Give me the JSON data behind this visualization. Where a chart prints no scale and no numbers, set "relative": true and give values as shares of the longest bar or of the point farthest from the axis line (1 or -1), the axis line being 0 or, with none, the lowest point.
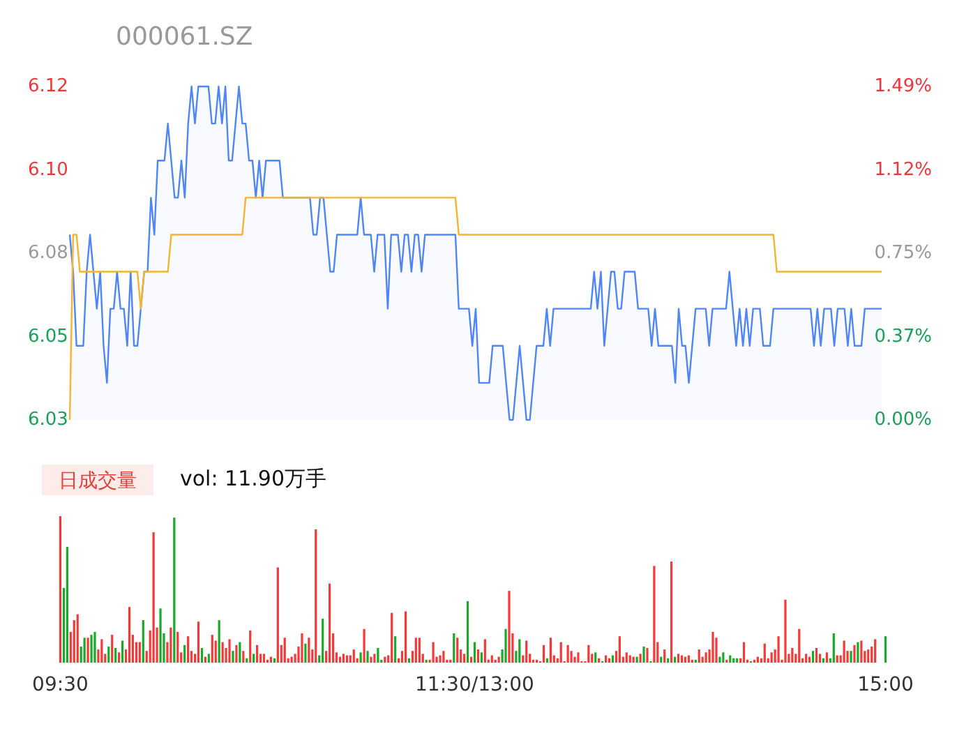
{
  "chart_data": [
    {
      "type": "line",
      "title": "000061.SZ",
      "ylim": [
        6.03,
        6.12
      ],
      "yticks": [
        6.03,
        {
          "value": 6.0525,
          "label": "6.05"
        },
        {
          "value": 6.075,
          "label": "6.08"
        },
        {
          "value": 6.0975,
          "label": "6.10"
        },
        6.12
      ],
      "y2lim": [
        0,
        1.49
      ],
      "y2ticks": [
        {
          "value": 0,
          "label": "0.00%"
        },
        {
          "value": 0.3725,
          "label": "0.37%"
        },
        {
          "value": 0.745,
          "label": "0.75%"
        },
        {
          "value": 1.1175,
          "label": "1.12%"
        },
        {
          "value": 1.49,
          "label": "1.49%"
        }
      ],
      "tick_labels": "y",
      "categories": [
        null,
        null,
        null,
        null,
        null,
        null,
        null,
        null,
        null,
        null,
        null,
        null,
        null,
        null,
        null,
        null,
        null,
        null,
        null,
        null,
        null,
        null,
        null,
        null,
        null,
        null,
        null,
        null,
        null,
        null,
        null,
        null,
        null,
        null,
        null,
        null,
        null,
        null,
        null,
        null,
        null,
        null,
        null,
        null,
        null,
        null,
        null,
        null,
        null,
        null,
        null,
        null,
        null,
        null,
        null,
        null,
        null,
        null,
        null,
        null,
        null,
        null,
        null,
        null,
        null,
        null,
        null,
        null,
        null,
        null,
        null,
        null,
        null,
        null,
        null,
        null,
        null,
        null,
        null,
        null,
        null,
        null,
        null,
        null,
        null,
        null,
        null,
        null,
        null,
        null,
        null,
        null,
        null,
        null,
        null,
        null,
        null,
        null,
        null,
        null,
        null,
        null,
        null,
        null,
        null,
        null,
        null,
        null,
        null,
        null,
        null,
        null,
        null,
        null,
        null,
        null,
        null,
        null,
        null,
        null,
        null,
        null,
        null,
        null,
        null,
        null,
        null,
        null,
        null,
        null,
        null,
        null,
        null,
        null,
        null,
        null,
        null,
        null,
        null,
        null,
        null,
        null,
        null,
        null,
        null,
        null,
        null,
        null,
        null,
        null,
        null,
        null,
        null,
        null,
        null,
        null,
        null,
        null,
        null,
        null,
        null,
        null,
        null,
        null,
        null,
        null,
        null,
        null,
        null,
        null,
        null,
        null,
        null,
        null,
        null,
        null,
        null,
        null,
        null,
        null,
        null,
        null,
        null,
        null,
        null,
        null,
        null,
        null,
        null,
        null,
        null,
        null,
        null,
        null,
        null,
        null,
        null,
        null,
        null,
        null,
        null,
        null,
        null,
        null,
        null,
        null,
        null,
        null,
        null,
        null,
        null,
        null,
        null,
        null,
        null,
        null,
        null,
        null,
        null,
        null,
        null,
        null,
        null,
        null,
        null,
        null,
        null,
        null,
        null,
        null,
        null,
        null,
        null,
        null,
        null,
        null,
        null,
        null,
        null,
        null,
        null
      ],
      "series": [
        {
          "type": "area",
          "color": "#4e86f5",
          "values": [
            6.08,
            6.07,
            6.05,
            6.05,
            6.05,
            6.07,
            6.08,
            6.07,
            6.06,
            6.07,
            6.05,
            6.04,
            6.06,
            6.06,
            6.07,
            6.06,
            6.06,
            6.05,
            6.07,
            6.05,
            6.05,
            6.06,
            6.07,
            6.07,
            6.09,
            6.08,
            6.1,
            6.1,
            6.1,
            6.11,
            6.1,
            6.09,
            6.09,
            6.1,
            6.09,
            6.11,
            6.12,
            6.11,
            6.12,
            6.12,
            6.12,
            6.12,
            6.11,
            6.11,
            6.12,
            6.11,
            6.12,
            6.1,
            6.1,
            6.11,
            6.12,
            6.11,
            6.11,
            6.1,
            6.1,
            6.09,
            6.1,
            6.09,
            6.1,
            6.1,
            6.1,
            6.1,
            6.1,
            6.09,
            6.09,
            6.09,
            6.09,
            6.09,
            6.09,
            6.09,
            6.09,
            6.09,
            6.08,
            6.08,
            6.09,
            6.09,
            6.08,
            6.07,
            6.07,
            6.08,
            6.08,
            6.08,
            6.08,
            6.08,
            6.08,
            6.08,
            6.09,
            6.08,
            6.08,
            6.08,
            6.07,
            6.08,
            6.08,
            6.08,
            6.06,
            6.08,
            6.08,
            6.08,
            6.07,
            6.08,
            6.08,
            6.07,
            6.08,
            6.08,
            6.07,
            6.08,
            6.08,
            6.08,
            6.08,
            6.08,
            6.08,
            6.08,
            6.08,
            6.08,
            6.08,
            6.06,
            6.06,
            6.06,
            6.06,
            6.05,
            6.06,
            6.04,
            6.04,
            6.04,
            6.04,
            6.05,
            6.05,
            6.05,
            6.05,
            6.04,
            6.03,
            6.03,
            6.04,
            6.05,
            6.04,
            6.03,
            6.03,
            6.04,
            6.05,
            6.05,
            6.05,
            6.06,
            6.05,
            6.06,
            6.06,
            6.06,
            6.06,
            6.06,
            6.06,
            6.06,
            6.06,
            6.06,
            6.06,
            6.06,
            6.06,
            6.07,
            6.06,
            6.07,
            6.05,
            6.06,
            6.07,
            6.07,
            6.06,
            6.06,
            6.07,
            6.07,
            6.07,
            6.07,
            6.06,
            6.06,
            6.06,
            6.06,
            6.05,
            6.06,
            6.05,
            6.05,
            6.05,
            6.05,
            6.05,
            6.04,
            6.06,
            6.05,
            6.05,
            6.04,
            6.05,
            6.06,
            6.06,
            6.06,
            6.06,
            6.05,
            6.06,
            6.06,
            6.06,
            6.06,
            6.06,
            6.07,
            6.06,
            6.05,
            6.06,
            6.05,
            6.06,
            6.05,
            6.06,
            6.06,
            6.06,
            6.05,
            6.05,
            6.05,
            6.06,
            6.06,
            6.06,
            6.06,
            6.06,
            6.06,
            6.06,
            6.06,
            6.06,
            6.06,
            6.06,
            6.06,
            6.05,
            6.06,
            6.05,
            6.06,
            6.06,
            6.06,
            6.05,
            6.06,
            6.06,
            6.06,
            6.05,
            6.06,
            6.05,
            6.05,
            6.05,
            6.06,
            6.06,
            6.06,
            6.06,
            6.06,
            6.06
          ]
        },
        {
          "type": "line",
          "color": "#f5b331",
          "values": [
            6.03,
            6.08,
            6.08,
            6.07,
            6.07,
            6.07,
            6.07,
            6.07,
            6.07,
            6.07,
            6.07,
            6.07,
            6.07,
            6.07,
            6.07,
            6.07,
            6.07,
            6.07,
            6.07,
            6.07,
            6.07,
            6.06,
            6.07,
            6.07,
            6.07,
            6.07,
            6.07,
            6.07,
            6.07,
            6.07,
            6.08,
            6.08,
            6.08,
            6.08,
            6.08,
            6.08,
            6.08,
            6.08,
            6.08,
            6.08,
            6.08,
            6.08,
            6.08,
            6.08,
            6.08,
            6.08,
            6.08,
            6.08,
            6.08,
            6.08,
            6.08,
            6.08,
            6.09,
            6.09,
            6.09,
            6.09,
            6.09,
            6.09,
            6.09,
            6.09,
            6.09,
            6.09,
            6.09,
            6.09,
            6.09,
            6.09,
            6.09,
            6.09,
            6.09,
            6.09,
            6.09,
            6.09,
            6.09,
            6.09,
            6.09,
            6.09,
            6.09,
            6.09,
            6.09,
            6.09,
            6.09,
            6.09,
            6.09,
            6.09,
            6.09,
            6.09,
            6.09,
            6.09,
            6.09,
            6.09,
            6.09,
            6.09,
            6.09,
            6.09,
            6.09,
            6.09,
            6.09,
            6.09,
            6.09,
            6.09,
            6.09,
            6.09,
            6.09,
            6.09,
            6.09,
            6.09,
            6.09,
            6.09,
            6.09,
            6.09,
            6.09,
            6.09,
            6.09,
            6.09,
            6.09,
            6.08,
            6.08,
            6.08,
            6.08,
            6.08,
            6.08,
            6.08,
            6.08,
            6.08,
            6.08,
            6.08,
            6.08,
            6.08,
            6.08,
            6.08,
            6.08,
            6.08,
            6.08,
            6.08,
            6.08,
            6.08,
            6.08,
            6.08,
            6.08,
            6.08,
            6.08,
            6.08,
            6.08,
            6.08,
            6.08,
            6.08,
            6.08,
            6.08,
            6.08,
            6.08,
            6.08,
            6.08,
            6.08,
            6.08,
            6.08,
            6.08,
            6.08,
            6.08,
            6.08,
            6.08,
            6.08,
            6.08,
            6.08,
            6.08,
            6.08,
            6.08,
            6.08,
            6.08,
            6.08,
            6.08,
            6.08,
            6.08,
            6.08,
            6.08,
            6.08,
            6.08,
            6.08,
            6.08,
            6.08,
            6.08,
            6.08,
            6.08,
            6.08,
            6.08,
            6.08,
            6.08,
            6.08,
            6.08,
            6.08,
            6.08,
            6.08,
            6.08,
            6.08,
            6.08,
            6.08,
            6.08,
            6.08,
            6.08,
            6.08,
            6.08,
            6.08,
            6.08,
            6.08,
            6.08,
            6.08,
            6.08,
            6.08,
            6.08,
            6.08,
            6.07,
            6.07,
            6.07,
            6.07,
            6.07,
            6.07,
            6.07,
            6.07,
            6.07,
            6.07,
            6.07,
            6.07,
            6.07,
            6.07,
            6.07,
            6.07,
            6.07,
            6.07,
            6.07,
            6.07,
            6.07,
            6.07,
            6.07,
            6.07,
            6.07,
            6.07,
            6.07,
            6.07,
            6.07,
            6.07,
            6.07,
            6.07
          ]
        }
      ]
    },
    {
      "type": "bar",
      "title": "日成交量",
      "subtitle": "vol: 11.90万手",
      "relative": true,
      "tick_labels": "x",
      "categories": [
        "09:30",
        null,
        null,
        null,
        null,
        null,
        null,
        null,
        null,
        null,
        null,
        null,
        null,
        null,
        null,
        null,
        null,
        null,
        null,
        null,
        null,
        null,
        null,
        null,
        null,
        null,
        null,
        null,
        null,
        null,
        null,
        null,
        null,
        null,
        null,
        null,
        null,
        null,
        null,
        null,
        null,
        null,
        null,
        null,
        null,
        null,
        null,
        null,
        null,
        null,
        null,
        null,
        null,
        null,
        null,
        null,
        null,
        null,
        null,
        null,
        null,
        null,
        null,
        null,
        null,
        null,
        null,
        null,
        null,
        null,
        null,
        null,
        null,
        null,
        null,
        null,
        null,
        null,
        null,
        null,
        null,
        null,
        null,
        null,
        null,
        null,
        null,
        null,
        null,
        null,
        null,
        null,
        null,
        null,
        null,
        null,
        null,
        null,
        null,
        null,
        null,
        null,
        null,
        null,
        null,
        null,
        null,
        null,
        null,
        null,
        null,
        null,
        null,
        null,
        null,
        null,
        null,
        null,
        null,
        null,
        "11:30/13:00",
        null,
        null,
        null,
        null,
        null,
        null,
        null,
        null,
        null,
        null,
        null,
        null,
        null,
        null,
        null,
        null,
        null,
        null,
        null,
        null,
        null,
        null,
        null,
        null,
        null,
        null,
        null,
        null,
        null,
        null,
        null,
        null,
        null,
        null,
        null,
        null,
        null,
        null,
        null,
        null,
        null,
        null,
        null,
        null,
        null,
        null,
        null,
        null,
        null,
        null,
        null,
        null,
        null,
        null,
        null,
        null,
        null,
        null,
        null,
        null,
        null,
        null,
        null,
        null,
        null,
        null,
        null,
        null,
        null,
        null,
        null,
        null,
        null,
        null,
        null,
        null,
        null,
        null,
        null,
        null,
        null,
        null,
        null,
        null,
        null,
        null,
        null,
        null,
        null,
        null,
        null,
        null,
        null,
        null,
        null,
        null,
        null,
        null,
        null,
        null,
        null,
        null,
        null,
        null,
        null,
        null,
        null,
        null,
        null,
        null,
        null,
        null,
        null,
        null,
        null,
        null,
        null,
        null,
        "15:00"
      ],
      "values": [
        1.0,
        0.51,
        0.79,
        0.21,
        0.29,
        0.33,
        0.11,
        0.17,
        0.17,
        0.19,
        0.21,
        0.09,
        0.16,
        0.06,
        0.11,
        0.19,
        0.1,
        0.07,
        0.15,
        0.09,
        0.38,
        0.19,
        0.14,
        0.14,
        0.29,
        0.08,
        0.22,
        0.89,
        0.24,
        0.37,
        0.2,
        0.14,
        0.24,
        0.99,
        0.21,
        0.07,
        0.12,
        0.18,
        0.08,
        0.06,
        0.28,
        0.1,
        0.04,
        0.06,
        0.19,
        0.15,
        0.29,
        0.14,
        0.1,
        0.16,
        0.08,
        0.12,
        0.14,
        0.08,
        0.03,
        0.22,
        0.06,
        0.12,
        0.06,
        0.06,
        0.02,
        0.04,
        0.03,
        0.65,
        0.12,
        0.17,
        0.03,
        0.04,
        0.06,
        0.11,
        0.2,
        0.13,
        0.17,
        0.09,
        0.91,
        0.05,
        0.3,
        0.08,
        0.54,
        0.2,
        0.07,
        0.04,
        0.06,
        0.05,
        0.05,
        0.09,
        0.03,
        0.07,
        0.23,
        0.08,
        0.04,
        0.06,
        0.1,
        0.02,
        0.04,
        0.05,
        0.34,
        0.18,
        0.03,
        0.08,
        0.35,
        0.03,
        0.08,
        0.17,
        0.17,
        0.06,
        0.02,
        0.02,
        0.14,
        0.04,
        0.05,
        0.08,
        0.02,
        0.02,
        0.2,
        0.17,
        0.09,
        0.06,
        0.42,
        0.04,
        0.14,
        0.09,
        0.07,
        0.16,
        0.02,
        0.05,
        0.02,
        0.04,
        0.09,
        0.23,
        0.49,
        0.2,
        0.08,
        0.16,
        0.05,
        0.15,
        0.06,
        0.02,
        0.02,
        0.01,
        0.12,
        0.03,
        0.17,
        0.05,
        0.03,
        0.14,
        0.01,
        0.12,
        0.08,
        0.04,
        0.07,
        0.01,
        0.01,
        0.12,
        0.06,
        0.07,
        0.03,
        0.01,
        0.05,
        0.03,
        0.05,
        0.08,
        0.18,
        0.04,
        0.07,
        0.05,
        0.04,
        0.04,
        0.06,
        0.11,
        0.1,
        0.01,
        0.66,
        0.14,
        0.04,
        0.09,
        0.03,
        0.69,
        0.04,
        0.06,
        0.05,
        0.04,
        0.05,
        0.02,
        0.02,
        0.09,
        0.04,
        0.07,
        0.09,
        0.21,
        0.17,
        0.04,
        0.07,
        0.02,
        0.05,
        0.03,
        0.03,
        0.03,
        0.14,
        0.02,
        0.01,
        0.02,
        0.04,
        0.03,
        0.13,
        0.03,
        0.07,
        0.09,
        0.18,
        0.02,
        0.43,
        0.06,
        0.1,
        0.06,
        0.23,
        0.03,
        0.06,
        0.04,
        0.08,
        0.1,
        0.06,
        0.03,
        0.07,
        0.03,
        0.2,
        0.05,
        0.05,
        0.15,
        0.08,
        0.08,
        0.12,
        0.14,
        0.15,
        0.08,
        0.09,
        0.11,
        0.16,
        null,
        null,
        0.18
      ],
      "colors": [
        "#f23a3a",
        "#1aa928",
        "#1aa928",
        "#f23a3a",
        "#f23a3a",
        "#f23a3a",
        "#1aa928",
        "#1aa928",
        "#f23a3a",
        "#1aa928",
        "#1aa928",
        "#f23a3a",
        "#f23a3a",
        "#f23a3a",
        "#1aa928",
        "#f23a3a",
        "#1aa928",
        "#f23a3a",
        "#1aa928",
        "#f23a3a",
        "#f23a3a",
        "#f23a3a",
        "#f23a3a",
        "#f23a3a",
        "#1aa928",
        "#f23a3a",
        "#f23a3a",
        "#f23a3a",
        "#f23a3a",
        "#1aa928",
        "#1aa928",
        "#f23a3a",
        "#f23a3a",
        "#1aa928",
        "#f23a3a",
        "#f23a3a",
        "#1aa928",
        "#f23a3a",
        "#f23a3a",
        "#f23a3a",
        "#f23a3a",
        "#1aa928",
        "#f23a3a",
        "#1aa928",
        "#f23a3a",
        "#f23a3a",
        "#1aa928",
        "#f23a3a",
        "#f23a3a",
        "#f23a3a",
        "#1aa928",
        "#f23a3a",
        "#1aa928",
        "#f23a3a",
        "#1aa928",
        "#f23a3a",
        "#1aa928",
        "#f23a3a",
        "#f23a3a",
        "#f23a3a",
        "#f23a3a",
        "#f23a3a",
        "#1aa928",
        "#f23a3a",
        "#f23a3a",
        "#f23a3a",
        "#f23a3a",
        "#f23a3a",
        "#f23a3a",
        "#f23a3a",
        "#f23a3a",
        "#1aa928",
        "#f23a3a",
        "#f23a3a",
        "#f23a3a",
        "#1aa928",
        "#1aa928",
        "#f23a3a",
        "#f23a3a",
        "#f23a3a",
        "#f23a3a",
        "#f23a3a",
        "#f23a3a",
        "#f23a3a",
        "#f23a3a",
        "#f23a3a",
        "#f23a3a",
        "#1aa928",
        "#f23a3a",
        "#1aa928",
        "#f23a3a",
        "#f23a3a",
        "#1aa928",
        "#1aa928",
        "#f23a3a",
        "#f23a3a",
        "#f23a3a",
        "#1aa928",
        "#f23a3a",
        "#f23a3a",
        "#f23a3a",
        "#1aa928",
        "#f23a3a",
        "#f23a3a",
        "#f23a3a",
        "#f23a3a",
        "#1aa928",
        "#f23a3a",
        "#f23a3a",
        "#f23a3a",
        "#f23a3a",
        "#f23a3a",
        "#f23a3a",
        "#f23a3a",
        "#1aa928",
        "#f23a3a",
        "#f23a3a",
        "#f23a3a",
        "#1aa928",
        "#f23a3a",
        "#1aa928",
        "#f23a3a",
        "#1aa928",
        "#f23a3a",
        "#f23a3a",
        "#f23a3a",
        "#f23a3a",
        "#f23a3a",
        "#1aa928",
        "#1aa928",
        "#f23a3a",
        "#f23a3a",
        "#1aa928",
        "#1aa928",
        "#f23a3a",
        "#f23a3a",
        "#f23a3a",
        "#f23a3a",
        "#f23a3a",
        "#f23a3a",
        "#f23a3a",
        "#1aa928",
        "#f23a3a",
        "#f23a3a",
        "#f23a3a",
        "#f23a3a",
        "#f23a3a",
        "#f23a3a",
        "#f23a3a",
        "#f23a3a",
        "#f23a3a",
        "#f23a3a",
        "#f23a3a",
        "#f23a3a",
        "#f23a3a",
        "#1aa928",
        "#f23a3a",
        "#1aa928",
        "#f23a3a",
        "#f23a3a",
        "#1aa928",
        "#f23a3a",
        "#f23a3a",
        "#f23a3a",
        "#f23a3a",
        "#f23a3a",
        "#f23a3a",
        "#1aa928",
        "#f23a3a",
        "#1aa928",
        "#f23a3a",
        "#1aa928",
        "#f23a3a",
        "#f23a3a",
        "#1aa928",
        "#f23a3a",
        "#1aa928",
        "#f23a3a",
        "#1aa928",
        "#f23a3a",
        "#f23a3a",
        "#f23a3a",
        "#f23a3a",
        "#f23a3a",
        "#1aa928",
        "#f23a3a",
        "#f23a3a",
        "#f23a3a",
        "#f23a3a",
        "#f23a3a",
        "#f23a3a",
        "#1aa928",
        "#1aa928",
        "#f23a3a",
        "#1aa928",
        "#1aa928",
        "#1aa928",
        "#f23a3a",
        "#f23a3a",
        "#f23a3a",
        "#1aa928",
        "#f23a3a",
        "#f23a3a",
        "#f23a3a",
        "#f23a3a",
        "#f23a3a",
        "#f23a3a",
        "#f23a3a",
        "#f23a3a",
        "#f23a3a",
        "#f23a3a",
        "#f23a3a",
        "#f23a3a",
        "#f23a3a",
        "#f23a3a",
        "#f23a3a",
        "#f23a3a",
        "#f23a3a",
        "#1aa928",
        "#f23a3a",
        "#f23a3a",
        "#1aa928",
        "#f23a3a",
        "#1aa928",
        "#1aa928",
        "#f23a3a",
        "#f23a3a",
        "#f23a3a",
        "#f23a3a",
        "#1aa928",
        "#f23a3a",
        "#1aa928",
        "#f23a3a",
        "#f23a3a",
        "#f23a3a",
        "#f23a3a",
        "#f23a3a",
        null,
        null,
        "#1aa928"
      ]
    }
  ]
}
